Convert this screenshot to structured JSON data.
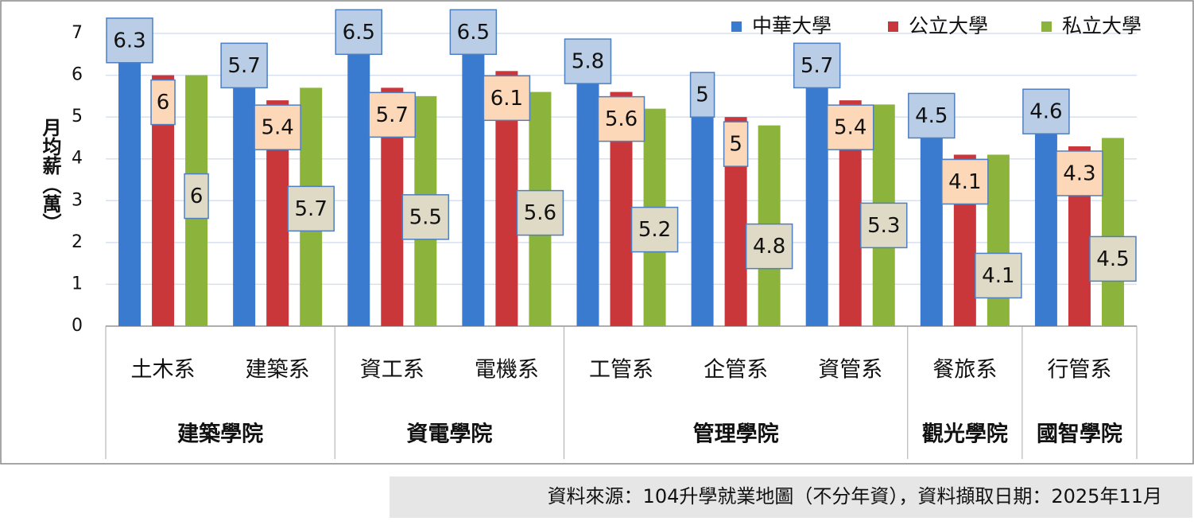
{
  "chart_data": {
    "type": "bar",
    "y_label": "月均薪（萬）",
    "groups": [
      {
        "label": "建築學院",
        "categories": [
          "土木系",
          "建築系"
        ]
      },
      {
        "label": "資電學院",
        "categories": [
          "資工系",
          "電機系"
        ]
      },
      {
        "label": "管理學院",
        "categories": [
          "工管系",
          "企管系",
          "資管系"
        ]
      },
      {
        "label": "觀光學院",
        "categories": [
          "餐旅系"
        ]
      },
      {
        "label": "國智學院",
        "categories": [
          "行管系"
        ]
      }
    ],
    "series": [
      {
        "name": "中華大學",
        "color": "#3b7bcf",
        "values": [
          6.3,
          5.7,
          6.5,
          6.5,
          5.8,
          5,
          5.7,
          4.5,
          4.6
        ]
      },
      {
        "name": "公立大學",
        "color": "#c9373b",
        "values": [
          6,
          5.4,
          5.7,
          6.1,
          5.6,
          5,
          5.4,
          4.1,
          4.3
        ]
      },
      {
        "name": "私立大學",
        "color": "#8cb43d",
        "values": [
          6,
          5.7,
          5.5,
          5.6,
          5.2,
          4.8,
          5.3,
          4.1,
          4.5
        ]
      }
    ],
    "ylim": [
      0,
      7
    ],
    "yticks": [
      0,
      1,
      2,
      3,
      4,
      5,
      6,
      7
    ],
    "grid": true,
    "legend": "top-right",
    "source": "資料來源：104升學就業地圖（不分年資），資料擷取日期：2025年11月"
  }
}
